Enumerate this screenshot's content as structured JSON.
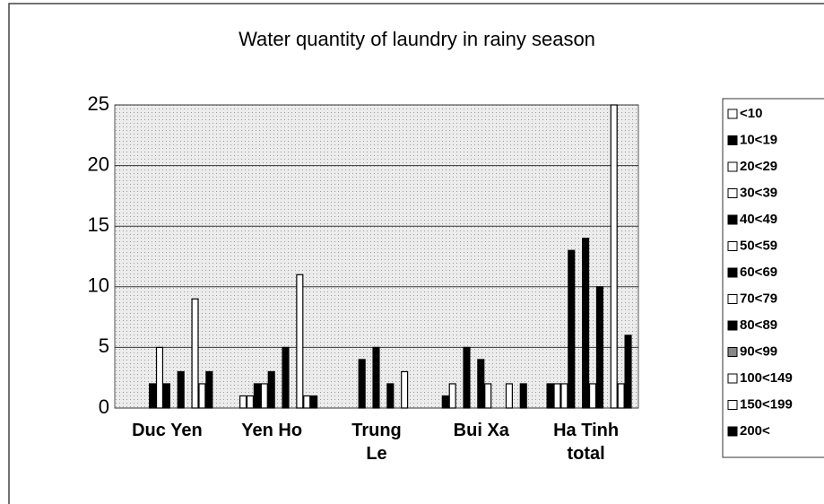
{
  "chart_data": {
    "type": "bar",
    "title": "Water quantity of laundry in rainy season",
    "categories": [
      "Duc Yen",
      "Yen Ho",
      "Trung\nLe",
      "Bui Xa",
      "Ha Tinh\ntotal"
    ],
    "series": [
      {
        "name": "<10",
        "color": "#ffffff",
        "values": [
          0,
          0,
          0,
          0,
          0
        ]
      },
      {
        "name": "10<19",
        "color": "#000000",
        "values": [
          0,
          0,
          0,
          1,
          2
        ]
      },
      {
        "name": "20<29",
        "color": "#ffffff",
        "values": [
          0,
          1,
          0,
          2,
          2
        ]
      },
      {
        "name": "30<39",
        "color": "#ffffff",
        "values": [
          0,
          1,
          0,
          0,
          2
        ]
      },
      {
        "name": "40<49",
        "color": "#000000",
        "values": [
          2,
          2,
          4,
          5,
          13
        ]
      },
      {
        "name": "50<59",
        "color": "#ffffff",
        "values": [
          5,
          2,
          0,
          0,
          0
        ]
      },
      {
        "name": "60<69",
        "color": "#000000",
        "values": [
          2,
          3,
          5,
          4,
          14
        ]
      },
      {
        "name": "70<79",
        "color": "#ffffff",
        "values": [
          0,
          0,
          0,
          2,
          2
        ]
      },
      {
        "name": "80<89",
        "color": "#000000",
        "values": [
          3,
          5,
          2,
          0,
          10
        ]
      },
      {
        "name": "90<99",
        "color": "#888888",
        "values": [
          0,
          0,
          0,
          0,
          0
        ]
      },
      {
        "name": "100<149",
        "color": "#ffffff",
        "values": [
          9,
          11,
          3,
          2,
          25
        ]
      },
      {
        "name": "150<199",
        "color": "#ffffff",
        "values": [
          2,
          1,
          0,
          0,
          2
        ]
      },
      {
        "name": "200<",
        "color": "#000000",
        "values": [
          3,
          1,
          0,
          2,
          6
        ]
      }
    ],
    "ylim": [
      0,
      25
    ],
    "yticks": [
      0,
      5,
      10,
      15,
      20,
      25
    ],
    "grid": true,
    "legend": "right"
  }
}
